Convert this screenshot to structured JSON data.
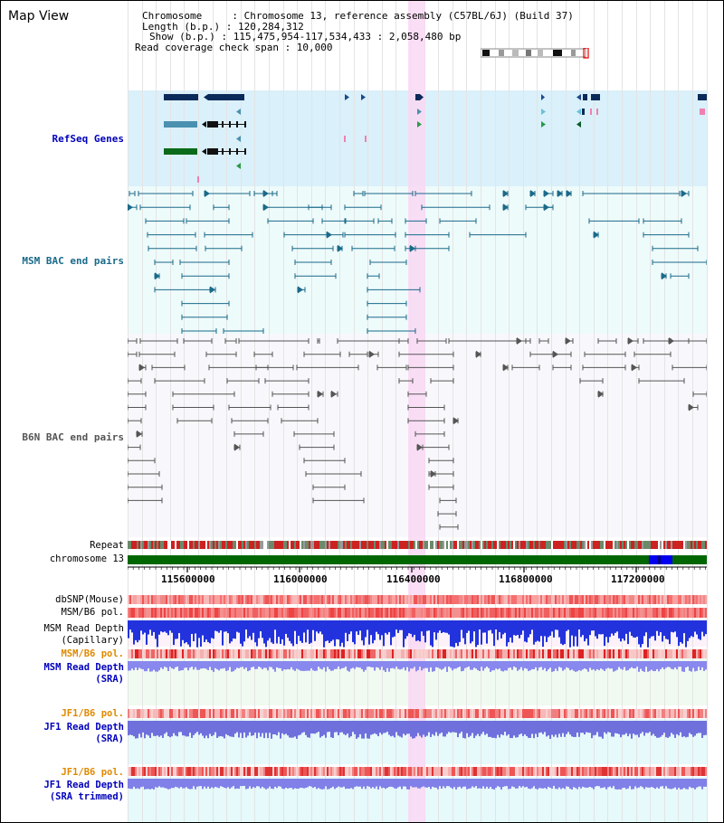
{
  "page": {
    "title": "Map View"
  },
  "info": {
    "chromosome": "Chromosome     : Chromosome 13, reference assembly (C57BL/6J) (Build 37)",
    "length": "Length (b.p.) : 120,284,312",
    "show": "Show (b.p.) : 115,475,954-117,534,433 : 2,058,480 bp",
    "read_span": "Read coverage check span : 10,000"
  },
  "tracks": {
    "refseq": "RefSeq Genes",
    "msm_bac": "MSM BAC end pairs",
    "b6n_bac": "B6N BAC end pairs",
    "repeat": "Repeat",
    "chromosome": "chromosome 13",
    "dbsnp": "dbSNP(Mouse)",
    "msm_b6_pol": "MSM/B6 pol.",
    "msm_read_depth_cap_1": "MSM Read Depth",
    "msm_read_depth_cap_2": "(Capillary)",
    "msm_b6_pol_2": "MSM/B6 pol.",
    "msm_read_depth_sra_1": "MSM Read Depth",
    "msm_read_depth_sra_2": "(SRA)",
    "jf1_b6_pol": "JF1/B6 pol.",
    "jf1_read_depth_sra_1": "JF1 Read Depth",
    "jf1_read_depth_sra_2": "(SRA)",
    "jf1_b6_pol_2": "JF1/B6 pol.",
    "jf1_read_depth_trim_1": "JF1 Read Depth",
    "jf1_read_depth_trim_2": "(SRA trimmed)"
  },
  "axis": {
    "ticks": [
      "115600000",
      "116000000",
      "116400000",
      "116800000",
      "117200000"
    ]
  },
  "colors": {
    "refseq_bg": "#daf0fa",
    "msm_bg": "#eefbfb",
    "b6n_bg": "#f8f8fc",
    "highlight": "#f9d8f3",
    "refseq_label": "#0000bb",
    "msm_label": "#1a6a8a",
    "b6n_label": "#555555",
    "orange_label": "#e08a00",
    "blue_label": "#0000bb",
    "chrom_green": "#006600"
  }
}
